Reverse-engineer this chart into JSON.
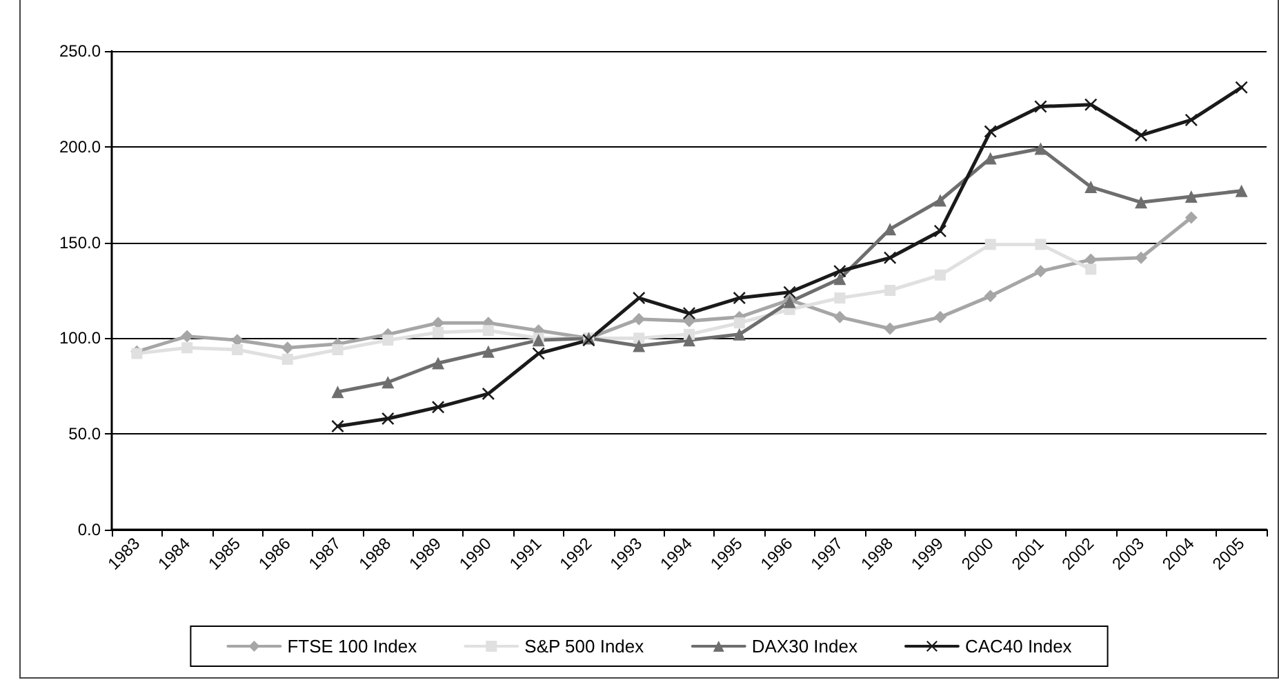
{
  "chart_data": {
    "type": "line",
    "categories": [
      "1983",
      "1984",
      "1985",
      "1986",
      "1987",
      "1988",
      "1989",
      "1990",
      "1991",
      "1992",
      "1993",
      "1994",
      "1995",
      "1996",
      "1997",
      "1998",
      "1999",
      "2000",
      "2001",
      "2002",
      "2003",
      "2004",
      "2005"
    ],
    "series": [
      {
        "name": "FTSE 100 Index",
        "color": "#a6a6a6",
        "marker": "diamond",
        "values": [
          93,
          101,
          99,
          95,
          97,
          102,
          108,
          108,
          104,
          100,
          110,
          109,
          111,
          120,
          111,
          105,
          111,
          122,
          135,
          141,
          142,
          163,
          null
        ]
      },
      {
        "name": "S&P 500 Index",
        "color": "#e0e0e0",
        "marker": "square",
        "values": [
          92,
          95,
          94,
          89,
          94,
          99,
          103,
          104,
          100,
          100,
          100,
          102,
          108,
          115,
          121,
          125,
          133,
          149,
          149,
          136,
          null,
          null,
          null
        ]
      },
      {
        "name": "DAX30 Index",
        "color": "#6e6e6e",
        "marker": "triangle",
        "values": [
          null,
          null,
          null,
          null,
          72,
          77,
          87,
          93,
          99,
          100,
          96,
          99,
          102,
          119,
          131,
          157,
          172,
          194,
          199,
          179,
          171,
          174,
          177
        ]
      },
      {
        "name": "CAC40 Index",
        "color": "#1a1a1a",
        "marker": "cross",
        "values": [
          null,
          null,
          null,
          null,
          54,
          58,
          64,
          71,
          92,
          99,
          121,
          113,
          121,
          124,
          135,
          142,
          156,
          208,
          221,
          222,
          206,
          214,
          231
        ]
      }
    ],
    "ylim": [
      0,
      250
    ],
    "yticks": [
      {
        "value": 0,
        "label": "0.0"
      },
      {
        "value": 50,
        "label": "50.0"
      },
      {
        "value": 100,
        "label": "100.0"
      },
      {
        "value": 150,
        "label": "150.0"
      },
      {
        "value": 200,
        "label": "200.0"
      },
      {
        "value": 250,
        "label": "250.0"
      }
    ],
    "grid": "y",
    "legend": "bottom",
    "line_style": "solid"
  }
}
